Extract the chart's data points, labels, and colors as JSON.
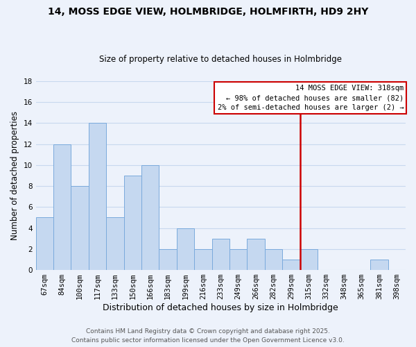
{
  "title": "14, MOSS EDGE VIEW, HOLMBRIDGE, HOLMFIRTH, HD9 2HY",
  "subtitle": "Size of property relative to detached houses in Holmbridge",
  "xlabel": "Distribution of detached houses by size in Holmbridge",
  "ylabel": "Number of detached properties",
  "bin_labels": [
    "67sqm",
    "84sqm",
    "100sqm",
    "117sqm",
    "133sqm",
    "150sqm",
    "166sqm",
    "183sqm",
    "199sqm",
    "216sqm",
    "233sqm",
    "249sqm",
    "266sqm",
    "282sqm",
    "299sqm",
    "315sqm",
    "332sqm",
    "348sqm",
    "365sqm",
    "381sqm",
    "398sqm"
  ],
  "bar_values": [
    5,
    12,
    8,
    14,
    5,
    9,
    10,
    2,
    4,
    2,
    3,
    2,
    3,
    2,
    1,
    2,
    0,
    0,
    0,
    1,
    0
  ],
  "bar_color": "#c5d8f0",
  "bar_edge_color": "#7aaadc",
  "grid_color": "#c8d8ee",
  "background_color": "#edf2fb",
  "vline_color": "#cc0000",
  "legend_title": "14 MOSS EDGE VIEW: 318sqm",
  "legend_line1": "← 98% of detached houses are smaller (82)",
  "legend_line2": "2% of semi-detached houses are larger (2) →",
  "footer_line1": "Contains HM Land Registry data © Crown copyright and database right 2025.",
  "footer_line2": "Contains public sector information licensed under the Open Government Licence v3.0.",
  "ylim": [
    0,
    18
  ],
  "yticks": [
    0,
    2,
    4,
    6,
    8,
    10,
    12,
    14,
    16,
    18
  ],
  "title_fontsize": 10,
  "subtitle_fontsize": 8.5,
  "xlabel_fontsize": 9,
  "ylabel_fontsize": 8.5,
  "tick_fontsize": 7.5,
  "legend_fontsize": 7.5,
  "footer_fontsize": 6.5
}
